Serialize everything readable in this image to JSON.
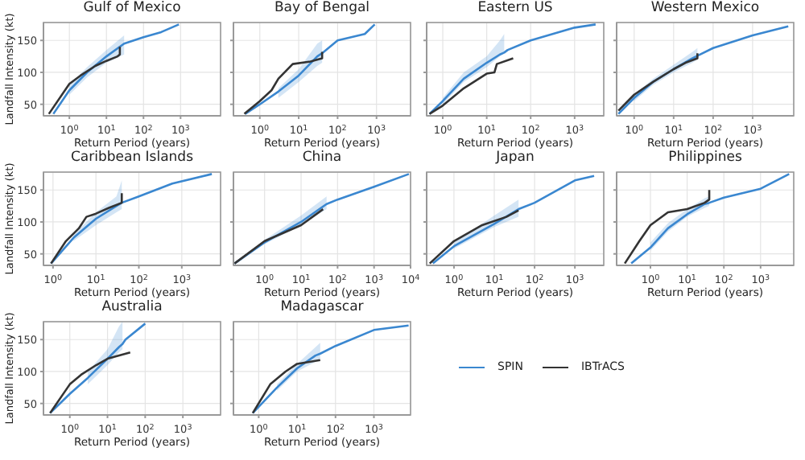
{
  "chart_data": [
    {
      "type": "line",
      "title": "Gulf of Mexico",
      "xlabel": "Return Period (years)",
      "ylabel": "Landfall Intensity (kt)",
      "log": "x",
      "grid": true,
      "legend": false,
      "xlim": [
        0.2,
        12000
      ],
      "ylim": [
        32,
        178
      ],
      "xticks": [
        {
          "value": 1,
          "label": "10$^{0}$"
        },
        {
          "value": 10,
          "label": "10$^{1}$"
        },
        {
          "value": 100,
          "label": "10$^{2}$"
        },
        {
          "value": 1000,
          "label": "10$^{3}$"
        }
      ],
      "yticks": [
        50,
        100,
        150
      ],
      "series": [
        {
          "color": "#3a87d0",
          "x": [
            0.37,
            1,
            3,
            10,
            30,
            100,
            300,
            900
          ],
          "values": [
            35,
            72,
            100,
            125,
            145,
            155,
            163,
            175
          ],
          "lower": [
            null,
            65,
            92,
            115,
            128,
            null,
            null,
            null
          ],
          "upper": [
            null,
            80,
            108,
            135,
            158,
            null,
            null,
            null
          ]
        },
        {
          "color": "#333333",
          "x": [
            0.28,
            1,
            2,
            5,
            10,
            20,
            23,
            23
          ],
          "values": [
            35,
            82,
            95,
            110,
            118,
            125,
            128,
            140
          ]
        }
      ]
    },
    {
      "type": "line",
      "title": "Bay of Bengal",
      "xlabel": "Return Period (years)",
      "log": "x",
      "grid": true,
      "legend": false,
      "tick_labels": "x",
      "xlim": [
        0.21,
        7500
      ],
      "ylim": [
        32,
        178
      ],
      "xticks": [
        {
          "value": 1,
          "label": "10$^{0}$"
        },
        {
          "value": 10,
          "label": "10$^{1}$"
        },
        {
          "value": 100,
          "label": "10$^{2}$"
        },
        {
          "value": 1000,
          "label": "10$^{3}$"
        }
      ],
      "yticks": [
        50,
        100,
        150
      ],
      "series": [
        {
          "color": "#3a87d0",
          "x": [
            0.42,
            1,
            3,
            10,
            30,
            40,
            100,
            500,
            900
          ],
          "values": [
            35,
            50,
            70,
            95,
            125,
            130,
            150,
            160,
            175
          ],
          "lower": [
            null,
            null,
            60,
            85,
            110,
            115,
            null,
            null,
            null
          ],
          "upper": [
            null,
            null,
            75,
            105,
            145,
            150,
            null,
            null,
            null
          ]
        },
        {
          "color": "#333333",
          "x": [
            0.4,
            1,
            2,
            3,
            7,
            20,
            40,
            40
          ],
          "values": [
            35,
            55,
            72,
            90,
            113,
            117,
            122,
            132
          ]
        }
      ]
    },
    {
      "type": "line",
      "title": "Eastern US",
      "xlabel": "Return Period (years)",
      "log": "x",
      "grid": true,
      "legend": false,
      "tick_labels": "x",
      "xlim": [
        0.43,
        4600
      ],
      "ylim": [
        32,
        178
      ],
      "xticks": [
        {
          "value": 1,
          "label": "10$^{0}$"
        },
        {
          "value": 10,
          "label": "10$^{1}$"
        },
        {
          "value": 100,
          "label": "10$^{2}$"
        },
        {
          "value": 1000,
          "label": "10$^{3}$"
        }
      ],
      "yticks": [
        50,
        100,
        150
      ],
      "series": [
        {
          "color": "#3a87d0",
          "x": [
            0.5,
            1,
            3,
            10,
            20,
            25,
            30,
            100,
            1000,
            3000
          ],
          "values": [
            35,
            55,
            90,
            115,
            128,
            131,
            135,
            150,
            170,
            175
          ],
          "lower": [
            null,
            50,
            85,
            108,
            125,
            130,
            null,
            null,
            null,
            null
          ],
          "upper": [
            null,
            60,
            100,
            125,
            150,
            160,
            null,
            null,
            null,
            null
          ]
        },
        {
          "color": "#333333",
          "x": [
            0.5,
            1,
            3,
            10,
            15,
            17,
            40
          ],
          "values": [
            35,
            48,
            75,
            98,
            100,
            113,
            122
          ]
        }
      ]
    },
    {
      "type": "line",
      "title": "Western Mexico",
      "xlabel": "Return Period (years)",
      "log": "x",
      "grid": true,
      "legend": false,
      "tick_labels": "x",
      "xlim": [
        0.36,
        11000
      ],
      "ylim": [
        32,
        178
      ],
      "xticks": [
        {
          "value": 1,
          "label": "10$^{0}$"
        },
        {
          "value": 10,
          "label": "10$^{1}$"
        },
        {
          "value": 100,
          "label": "10$^{2}$"
        },
        {
          "value": 1000,
          "label": "10$^{3}$"
        }
      ],
      "yticks": [
        50,
        100,
        150
      ],
      "series": [
        {
          "color": "#3a87d0",
          "x": [
            0.4,
            1,
            3,
            10,
            30,
            40,
            100,
            1000,
            8000
          ],
          "values": [
            35,
            60,
            85,
            105,
            122,
            126,
            138,
            158,
            172
          ],
          "lower": [
            null,
            55,
            80,
            100,
            115,
            120,
            null,
            null,
            null
          ],
          "upper": [
            null,
            65,
            90,
            112,
            132,
            138,
            null,
            null,
            null
          ]
        },
        {
          "color": "#333333",
          "x": [
            0.4,
            1,
            3,
            10,
            20,
            40,
            40
          ],
          "values": [
            40,
            65,
            85,
            105,
            115,
            122,
            130
          ]
        }
      ]
    },
    {
      "type": "line",
      "title": "Caribbean Islands",
      "xlabel": "Return Period (years)",
      "ylabel": "Landfall Intensity (kt)",
      "log": "x",
      "grid": true,
      "legend": false,
      "xlim": [
        0.6,
        8000
      ],
      "ylim": [
        32,
        178
      ],
      "xticks": [
        {
          "value": 1,
          "label": "10$^{0}$"
        },
        {
          "value": 10,
          "label": "10$^{1}$"
        },
        {
          "value": 100,
          "label": "10$^{2}$"
        },
        {
          "value": 1000,
          "label": "10$^{3}$"
        }
      ],
      "yticks": [
        50,
        100,
        150
      ],
      "series": [
        {
          "color": "#3a87d0",
          "x": [
            0.9,
            3,
            10,
            30,
            40,
            100,
            600,
            5000
          ],
          "values": [
            35,
            75,
            105,
            125,
            130,
            140,
            160,
            175
          ],
          "lower": [
            null,
            70,
            95,
            115,
            120,
            null,
            null,
            null
          ],
          "upper": [
            null,
            80,
            115,
            140,
            165,
            null,
            null,
            null
          ]
        },
        {
          "color": "#333333",
          "x": [
            0.9,
            2,
            4,
            6,
            10,
            20,
            40,
            40
          ],
          "values": [
            35,
            70,
            90,
            108,
            113,
            122,
            130,
            145
          ]
        }
      ]
    },
    {
      "type": "line",
      "title": "China",
      "xlabel": "Return Period (years)",
      "log": "x",
      "grid": true,
      "legend": false,
      "tick_labels": "x",
      "xlim": [
        0.14,
        10000
      ],
      "ylim": [
        32,
        178
      ],
      "xticks": [
        {
          "value": 1,
          "label": "10$^{0}$"
        },
        {
          "value": 10,
          "label": "10$^{1}$"
        },
        {
          "value": 100,
          "label": "10$^{2}$"
        },
        {
          "value": 1000,
          "label": "10$^{3}$"
        },
        {
          "value": 10000,
          "label": "10$^{4}$"
        }
      ],
      "yticks": [
        50,
        100,
        150
      ],
      "series": [
        {
          "color": "#3a87d0",
          "x": [
            0.15,
            1,
            10,
            50,
            100,
            1000,
            9000
          ],
          "values": [
            35,
            68,
            100,
            128,
            135,
            155,
            175
          ],
          "lower": [
            null,
            65,
            95,
            120,
            null,
            null,
            null
          ],
          "upper": [
            null,
            72,
            110,
            140,
            null,
            null,
            null
          ]
        },
        {
          "color": "#333333",
          "x": [
            0.15,
            1,
            10,
            40
          ],
          "values": [
            35,
            70,
            95,
            120
          ]
        }
      ]
    },
    {
      "type": "line",
      "title": "Japan",
      "xlabel": "Return Period (years)",
      "log": "x",
      "grid": true,
      "legend": false,
      "tick_labels": "x",
      "xlim": [
        0.21,
        5200
      ],
      "ylim": [
        32,
        178
      ],
      "xticks": [
        {
          "value": 1,
          "label": "10$^{0}$"
        },
        {
          "value": 10,
          "label": "10$^{1}$"
        },
        {
          "value": 100,
          "label": "10$^{2}$"
        },
        {
          "value": 1000,
          "label": "10$^{3}$"
        }
      ],
      "yticks": [
        50,
        100,
        150
      ],
      "series": [
        {
          "color": "#3a87d0",
          "x": [
            0.3,
            1,
            10,
            40,
            100,
            1000,
            3000
          ],
          "values": [
            35,
            62,
            97,
            120,
            130,
            165,
            172
          ],
          "lower": [
            null,
            58,
            92,
            108,
            null,
            null,
            null
          ],
          "upper": [
            null,
            68,
            110,
            135,
            null,
            null,
            null
          ]
        },
        {
          "color": "#333333",
          "x": [
            0.25,
            1,
            5,
            20,
            40
          ],
          "values": [
            35,
            70,
            95,
            108,
            118
          ]
        }
      ]
    },
    {
      "type": "line",
      "title": "Philippines",
      "xlabel": "Return Period (years)",
      "log": "x",
      "grid": true,
      "legend": false,
      "tick_labels": "x",
      "xlim": [
        0.12,
        8000
      ],
      "ylim": [
        32,
        178
      ],
      "xticks": [
        {
          "value": 1,
          "label": "10$^{0}$"
        },
        {
          "value": 10,
          "label": "10$^{1}$"
        },
        {
          "value": 100,
          "label": "10$^{2}$"
        },
        {
          "value": 1000,
          "label": "10$^{3}$"
        }
      ],
      "yticks": [
        50,
        100,
        150
      ],
      "series": [
        {
          "color": "#3a87d0",
          "x": [
            0.3,
            1,
            3,
            10,
            30,
            40,
            100,
            1000,
            6000
          ],
          "values": [
            35,
            60,
            90,
            112,
            128,
            130,
            138,
            152,
            175
          ],
          "lower": [
            null,
            55,
            85,
            108,
            122,
            125,
            null,
            null,
            null
          ],
          "upper": [
            null,
            68,
            98,
            120,
            137,
            140,
            null,
            null,
            null
          ]
        },
        {
          "color": "#333333",
          "x": [
            0.2,
            0.5,
            1,
            3,
            10,
            30,
            40,
            40
          ],
          "values": [
            35,
            70,
            95,
            115,
            120,
            130,
            135,
            150
          ]
        }
      ]
    },
    {
      "type": "line",
      "title": "Australia",
      "xlabel": "Return Period (years)",
      "ylabel": "Landfall Intensity (kt)",
      "log": "x",
      "grid": true,
      "legend": false,
      "xlim": [
        0.2,
        10000
      ],
      "ylim": [
        32,
        178
      ],
      "xticks": [
        {
          "value": 1,
          "label": "10$^{0}$"
        },
        {
          "value": 10,
          "label": "10$^{1}$"
        },
        {
          "value": 100,
          "label": "10$^{2}$"
        },
        {
          "value": 1000,
          "label": "10$^{3}$"
        }
      ],
      "yticks": [
        50,
        100,
        150
      ],
      "series": [
        {
          "color": "#3a87d0",
          "x": [
            0.3,
            1,
            3,
            10,
            20,
            25,
            30,
            100
          ],
          "values": [
            35,
            65,
            90,
            120,
            138,
            143,
            150,
            175
          ],
          "lower": [
            null,
            null,
            80,
            110,
            130,
            135,
            null,
            null
          ],
          "upper": [
            null,
            null,
            100,
            135,
            170,
            178,
            null,
            null
          ]
        },
        {
          "color": "#333333",
          "x": [
            0.3,
            1,
            2,
            5,
            10,
            40
          ],
          "values": [
            35,
            80,
            95,
            110,
            120,
            130
          ]
        }
      ]
    },
    {
      "type": "line",
      "title": "Madagascar",
      "xlabel": "Return Period (years)",
      "log": "x",
      "grid": true,
      "legend": "right",
      "tick_labels": "x",
      "xlim": [
        0.22,
        9000
      ],
      "ylim": [
        32,
        178
      ],
      "xticks": [
        {
          "value": 1,
          "label": "10$^{0}$"
        },
        {
          "value": 10,
          "label": "10$^{1}$"
        },
        {
          "value": 100,
          "label": "10$^{2}$"
        },
        {
          "value": 1000,
          "label": "10$^{3}$"
        }
      ],
      "yticks": [
        50,
        100,
        150
      ],
      "series": [
        {
          "name": "SPIN",
          "color": "#3a87d0",
          "x": [
            0.7,
            3,
            10,
            30,
            40,
            100,
            1000,
            8000
          ],
          "values": [
            35,
            75,
            105,
            125,
            128,
            140,
            165,
            172
          ],
          "lower": [
            null,
            70,
            100,
            115,
            120,
            null,
            null,
            null
          ],
          "upper": [
            null,
            80,
            112,
            138,
            145,
            null,
            null,
            null
          ]
        },
        {
          "name": "IBTrACS",
          "color": "#333333",
          "x": [
            0.7,
            2,
            5,
            10,
            40
          ],
          "values": [
            35,
            80,
            100,
            112,
            118
          ]
        }
      ]
    }
  ]
}
